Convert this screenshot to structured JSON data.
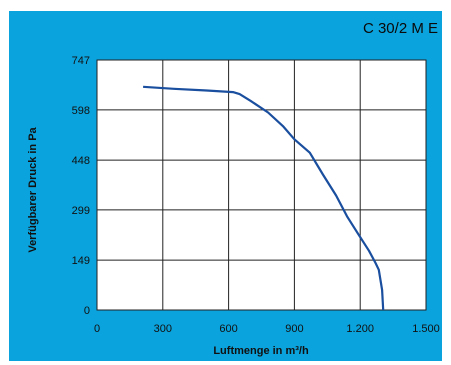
{
  "chart_data": {
    "type": "line",
    "title": "C 30/2 M E",
    "xlabel": "Luftmenge in m³/h",
    "ylabel": "Verfügbarer Druck in Pa",
    "xlim": [
      0,
      1500
    ],
    "ylim": [
      0,
      747
    ],
    "x_ticks": [
      0,
      300,
      600,
      900,
      1200,
      1500
    ],
    "x_tick_labels": [
      "0",
      "300",
      "600",
      "900",
      "1.200",
      "1.500"
    ],
    "y_ticks": [
      0,
      149,
      299,
      448,
      598,
      747
    ],
    "y_tick_labels": [
      "0",
      "149",
      "299",
      "448",
      "598",
      "747"
    ],
    "grid": true,
    "series": [
      {
        "x": [
          210,
          350,
          500,
          620,
          650,
          700,
          780,
          850,
          900,
          970,
          1030,
          1090,
          1140,
          1190,
          1240,
          1270,
          1285,
          1300,
          1305
        ],
        "y": [
          667,
          661,
          656,
          651,
          645,
          625,
          590,
          548,
          510,
          470,
          405,
          342,
          280,
          228,
          177,
          140,
          120,
          60,
          0
        ]
      }
    ],
    "line_color": "#1a4e9e"
  }
}
